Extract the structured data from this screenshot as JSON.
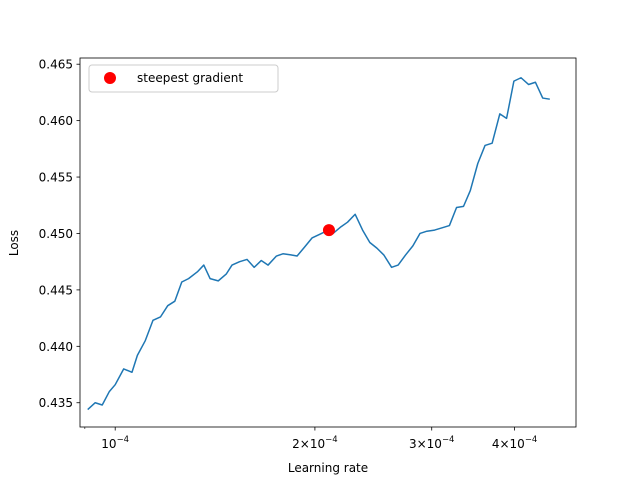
{
  "chart_data": {
    "type": "line",
    "title": "",
    "xlabel": "Learning rate",
    "ylabel": "Loss",
    "xscale": "log",
    "xlim": [
      8.85e-05,
      0.000495
    ],
    "ylim": [
      0.43285,
      0.46555
    ],
    "grid": false,
    "legend_placement": "upper left",
    "x_ticks": [
      {
        "value": 0.0001,
        "mantissa": "",
        "exponent": "−4"
      },
      {
        "value": 0.0002,
        "mantissa": "2",
        "exponent": "−4"
      },
      {
        "value": 0.0003,
        "mantissa": "3",
        "exponent": "−4"
      },
      {
        "value": 0.0004,
        "mantissa": "4",
        "exponent": "−4"
      }
    ],
    "y_ticks": [
      {
        "value": 0.435,
        "label": "0.435"
      },
      {
        "value": 0.44,
        "label": "0.440"
      },
      {
        "value": 0.445,
        "label": "0.445"
      },
      {
        "value": 0.45,
        "label": "0.450"
      },
      {
        "value": 0.455,
        "label": "0.455"
      },
      {
        "value": 0.46,
        "label": "0.460"
      },
      {
        "value": 0.465,
        "label": "0.465"
      }
    ],
    "series": [
      {
        "color": "#1f77b4",
        "x": [
          9.09e-05,
          9.33e-05,
          9.56e-05,
          9.8e-05,
          0.0001,
          0.000103,
          0.000106,
          0.000108,
          0.000111,
          0.000114,
          0.000117,
          0.00012,
          0.000123,
          0.000126,
          0.000129,
          0.000133,
          0.000136,
          0.000139,
          0.000143,
          0.000147,
          0.00015,
          0.000154,
          0.000158,
          0.000162,
          0.000166,
          0.00017,
          0.000175,
          0.000179,
          0.000184,
          0.000188,
          0.000193,
          0.000198,
          0.000203,
          0.000208,
          0.000213,
          0.000219,
          0.000224,
          0.00023,
          0.000236,
          0.000242,
          0.000248,
          0.000254,
          0.000261,
          0.000267,
          0.000274,
          0.000281,
          0.000288,
          0.000295,
          0.000303,
          0.000311,
          0.000319,
          0.000327,
          0.000335,
          0.000343,
          0.000352,
          0.000361,
          0.00037,
          0.00038,
          0.000389,
          0.000399,
          0.000409,
          0.00042,
          0.00043,
          0.000441,
          0.000452
        ],
        "y": [
          0.4344,
          0.435,
          0.4348,
          0.436,
          0.4366,
          0.438,
          0.4377,
          0.4392,
          0.4405,
          0.4423,
          0.4426,
          0.4436,
          0.444,
          0.4457,
          0.446,
          0.4466,
          0.4472,
          0.446,
          0.4458,
          0.4464,
          0.4472,
          0.4475,
          0.4477,
          0.447,
          0.4476,
          0.4472,
          0.448,
          0.4482,
          0.4481,
          0.448,
          0.4488,
          0.4496,
          0.4499,
          0.4502,
          0.45,
          0.4506,
          0.451,
          0.4517,
          0.4503,
          0.4492,
          0.4487,
          0.4481,
          0.447,
          0.4472,
          0.4481,
          0.4489,
          0.45,
          0.4502,
          0.4503,
          0.4505,
          0.4507,
          0.4523,
          0.4524,
          0.4538,
          0.4562,
          0.4578,
          0.458,
          0.4606,
          0.4602,
          0.4635,
          0.4638,
          0.4632,
          0.4634,
          0.462,
          0.4619
        ]
      }
    ],
    "markers": [
      {
        "name": "steepest gradient",
        "x": 0.00021,
        "y": 0.4503,
        "color": "#ff0000"
      }
    ]
  }
}
